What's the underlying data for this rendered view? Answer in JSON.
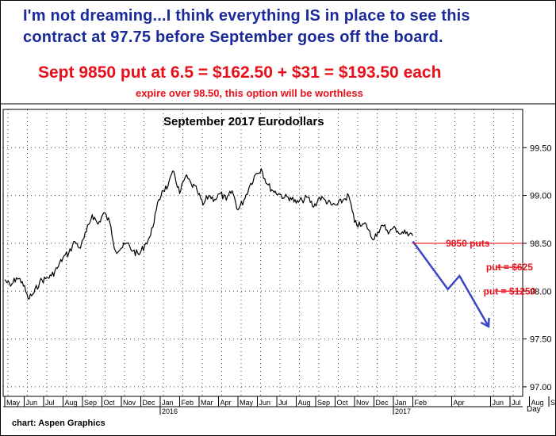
{
  "headline": {
    "line1": "I'm not dreaming...I think everything IS in place to see this",
    "line2": "contract at 97.75 before September goes off the board.",
    "trade": "Sept 9850 put at 6.5 = $162.50 + $31 = $193.50 each",
    "note": "expire over 98.50, this option will be worthless"
  },
  "credit": "chart: Aspen Graphics",
  "colors": {
    "headline_blue": "#1a2a9a",
    "red": "#e8101a",
    "projection_blue": "#3a46c8",
    "price_line": "#000000",
    "grid": "#444444"
  },
  "chart_data": {
    "type": "line",
    "title": "September 2017 Eurodollars",
    "xlabel": "Day",
    "ylabel": "",
    "ylim": [
      96.9,
      99.9
    ],
    "yticks": [
      "97.00",
      "97.50",
      "98.00",
      "98.50",
      "99.00",
      "99.50"
    ],
    "ytick_values": [
      97.0,
      97.5,
      98.0,
      98.5,
      99.0,
      99.5
    ],
    "xticks": [
      "May",
      "Jun",
      "Jul",
      "Aug",
      "Sep",
      "Oct",
      "Nov",
      "Dec",
      "Jan",
      "Feb",
      "Mar",
      "Apr",
      "May",
      "Jun",
      "Jul",
      "Aug",
      "Sep",
      "Oct",
      "Nov",
      "Dec",
      "Jan",
      "Feb",
      "Apr",
      "Jun",
      "Jul",
      "Aug",
      "Sep"
    ],
    "xtick_month_index": [
      0,
      1,
      2,
      3,
      4,
      5,
      6,
      7,
      8,
      9,
      10,
      11,
      12,
      13,
      14,
      15,
      16,
      17,
      18,
      19,
      20,
      21,
      23,
      25,
      26,
      27,
      28
    ],
    "year_labels": [
      {
        "label": "2016",
        "month_index": 8
      },
      {
        "label": "2017",
        "month_index": 20
      }
    ],
    "x_unit": "months since May 2015",
    "grid": true,
    "series": [
      {
        "name": "",
        "x": [
          0.0,
          0.3,
          0.6,
          0.9,
          1.2,
          1.5,
          1.8,
          2.1,
          2.4,
          2.7,
          3.0,
          3.3,
          3.6,
          3.9,
          4.2,
          4.5,
          4.8,
          5.1,
          5.4,
          5.7,
          6.0,
          6.3,
          6.6,
          6.9,
          7.2,
          7.5,
          7.8,
          8.1,
          8.4,
          8.7,
          9.0,
          9.3,
          9.6,
          9.9,
          10.2,
          10.5,
          10.8,
          11.1,
          11.4,
          11.7,
          12.0,
          12.3,
          12.6,
          12.9,
          13.2,
          13.5,
          13.8,
          14.1,
          14.4,
          14.7,
          15.0,
          15.3,
          15.6,
          15.9,
          16.2,
          16.5,
          16.8,
          17.1,
          17.4,
          17.7,
          18.0,
          18.3,
          18.6,
          18.9,
          19.2,
          19.5,
          19.8,
          20.1,
          20.4,
          20.7,
          21.0
        ],
        "values": [
          98.12,
          98.05,
          98.14,
          98.1,
          97.92,
          97.98,
          98.1,
          98.13,
          98.16,
          98.24,
          98.35,
          98.4,
          98.52,
          98.45,
          98.62,
          98.8,
          98.7,
          98.82,
          98.72,
          98.42,
          98.45,
          98.5,
          98.42,
          98.38,
          98.48,
          98.58,
          98.85,
          99.05,
          99.1,
          99.25,
          99.02,
          99.2,
          99.12,
          99.05,
          98.9,
          99.0,
          98.96,
          99.02,
          98.95,
          99.05,
          98.85,
          98.95,
          99.1,
          99.22,
          99.28,
          99.12,
          99.05,
          99.02,
          98.98,
          98.98,
          98.92,
          98.95,
          98.98,
          98.88,
          98.98,
          98.95,
          98.9,
          98.9,
          98.95,
          99.0,
          98.72,
          98.68,
          98.7,
          98.55,
          98.62,
          98.68,
          98.62,
          98.66,
          98.6,
          98.62,
          98.58
        ]
      },
      {
        "name": "",
        "x": [
          21.0,
          22.8,
          23.4,
          24.9
        ],
        "values": [
          98.52,
          98.02,
          98.16,
          97.63
        ]
      }
    ],
    "annotations": [
      {
        "text": "9850 puts",
        "y": 98.5,
        "x_from": 21.0,
        "x_to": 29.5
      },
      {
        "text": "put = $625",
        "y": 98.25,
        "x_from": 25.3,
        "x_to": 29.0
      },
      {
        "text": "put = $1250",
        "y": 98.0,
        "x_from": 25.3,
        "x_to": 29.0
      }
    ]
  }
}
